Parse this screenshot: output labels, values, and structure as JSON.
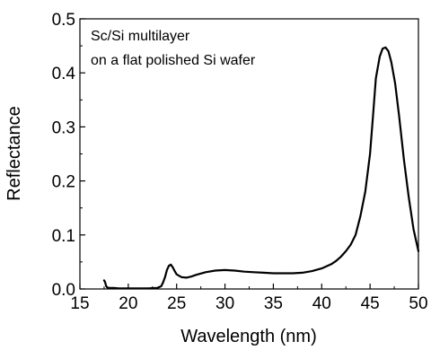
{
  "chart_data": {
    "type": "line",
    "title": "",
    "xlabel": "Wavelength (nm)",
    "ylabel": "Reflectance",
    "xlim": [
      15,
      50
    ],
    "ylim": [
      0.0,
      0.5
    ],
    "x_ticks": [
      "15",
      "20",
      "25",
      "30",
      "35",
      "40",
      "45",
      "50"
    ],
    "y_ticks": [
      "0.0",
      "0.1",
      "0.2",
      "0.3",
      "0.4",
      "0.5"
    ],
    "grid": false,
    "legend": "none",
    "annotation": [
      "Sc/Si multilayer",
      "on a flat polished Si wafer"
    ],
    "series": [
      {
        "color": "#000000",
        "x": [
          17.5,
          17.6,
          17.7,
          17.8,
          18.0,
          18.5,
          19.0,
          19.5,
          20.0,
          21.0,
          22.0,
          23.0,
          23.4,
          23.6,
          23.8,
          24.0,
          24.2,
          24.4,
          24.6,
          24.8,
          25.0,
          25.5,
          26.0,
          26.5,
          27.0,
          28.0,
          29.0,
          30.0,
          31.0,
          32.0,
          33.0,
          34.0,
          35.0,
          36.0,
          37.0,
          38.0,
          39.0,
          40.0,
          41.0,
          41.5,
          42.0,
          42.5,
          43.0,
          43.5,
          44.0,
          44.5,
          45.0,
          45.3,
          45.6,
          46.0,
          46.3,
          46.6,
          46.9,
          47.2,
          47.6,
          48.0,
          48.5,
          49.0,
          49.5,
          50.0
        ],
        "y": [
          0.016,
          0.013,
          0.006,
          0.003,
          0.002,
          0.002,
          0.001,
          0.001,
          0.001,
          0.001,
          0.001,
          0.002,
          0.005,
          0.012,
          0.022,
          0.035,
          0.043,
          0.045,
          0.04,
          0.033,
          0.027,
          0.022,
          0.021,
          0.023,
          0.026,
          0.031,
          0.034,
          0.035,
          0.034,
          0.032,
          0.031,
          0.03,
          0.029,
          0.029,
          0.029,
          0.03,
          0.033,
          0.038,
          0.046,
          0.052,
          0.06,
          0.07,
          0.082,
          0.1,
          0.135,
          0.18,
          0.25,
          0.32,
          0.39,
          0.43,
          0.445,
          0.447,
          0.44,
          0.42,
          0.38,
          0.32,
          0.24,
          0.17,
          0.11,
          0.07
        ]
      }
    ]
  }
}
